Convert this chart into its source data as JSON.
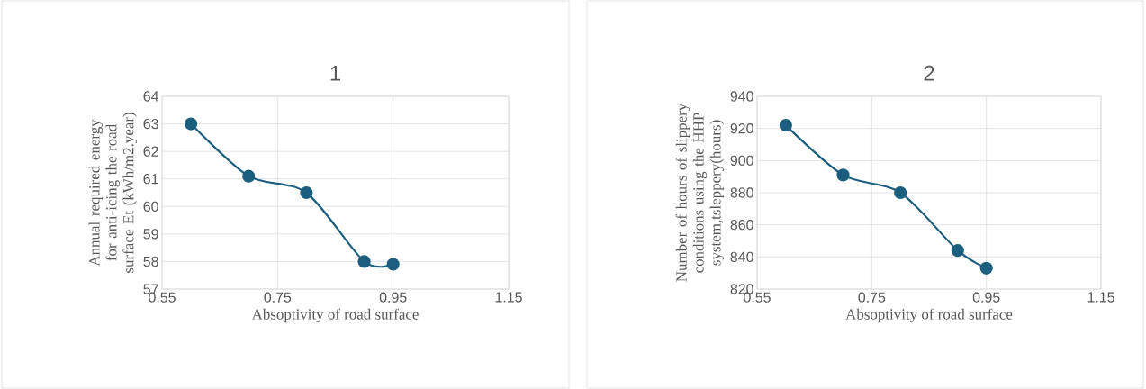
{
  "chart_data": [
    {
      "type": "line",
      "title": "1",
      "xlabel": "Absoptivity of road surface",
      "ylabel": "Annual required energy for anti-icing the road surface Et (kWh/m2.year)",
      "x": [
        0.6,
        0.7,
        0.8,
        0.9,
        0.95
      ],
      "series": [
        {
          "color": "#1b5e7d",
          "values": [
            63.0,
            61.1,
            60.5,
            58.0,
            57.9
          ]
        }
      ],
      "xlim": [
        0.55,
        1.15
      ],
      "xticks": [
        0.55,
        0.75,
        0.95,
        1.15
      ],
      "ylim": [
        57,
        64
      ],
      "yticks": [
        57,
        58,
        59,
        60,
        61,
        62,
        63,
        64
      ],
      "grid": true,
      "marker": "circle"
    },
    {
      "type": "line",
      "title": "2",
      "xlabel": "Absoptivity of road surface",
      "ylabel": "Number of hours of slippery conditions using the HHP system,tsleppery(hours)",
      "x": [
        0.6,
        0.7,
        0.8,
        0.9,
        0.95
      ],
      "series": [
        {
          "color": "#1b5e7d",
          "values": [
            922,
            891,
            880,
            844,
            833
          ]
        }
      ],
      "xlim": [
        0.55,
        1.15
      ],
      "xticks": [
        0.55,
        0.75,
        0.95,
        1.15
      ],
      "ylim": [
        820,
        940
      ],
      "yticks": [
        820,
        840,
        860,
        880,
        900,
        920,
        940
      ],
      "grid": true,
      "marker": "circle"
    }
  ]
}
